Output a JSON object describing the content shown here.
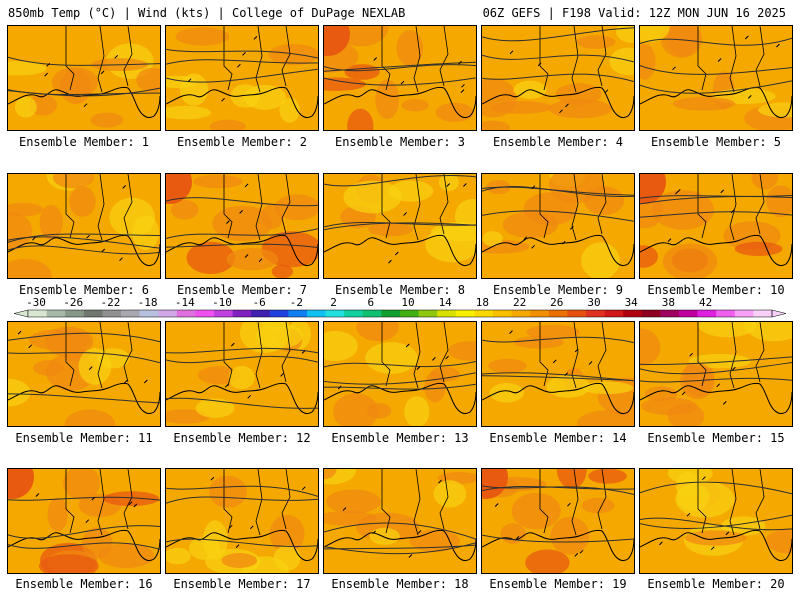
{
  "header": {
    "left": "850mb Temp (°C) | Wind (kts) | College of DuPage NEXLAB",
    "right": "06Z GEFS | F198 Valid: 12Z MON JUN 16 2025"
  },
  "colors": {
    "base_orange": "#f4a800",
    "warm_orange": "#f08a10",
    "hot_red": "#e85a10",
    "cool_yellow": "#f8d010",
    "contour": "#303030"
  },
  "panels": [
    {
      "label": "Ensemble Member: 1",
      "tint": "warm"
    },
    {
      "label": "Ensemble Member: 2",
      "tint": "cool"
    },
    {
      "label": "Ensemble Member: 3",
      "tint": "hot"
    },
    {
      "label": "Ensemble Member: 4",
      "tint": "warm"
    },
    {
      "label": "Ensemble Member: 5",
      "tint": "warm"
    },
    {
      "label": "Ensemble Member: 6",
      "tint": "warm"
    },
    {
      "label": "Ensemble Member: 7",
      "tint": "hot"
    },
    {
      "label": "Ensemble Member: 8",
      "tint": "cool"
    },
    {
      "label": "Ensemble Member: 9",
      "tint": "warm"
    },
    {
      "label": "Ensemble Member: 10",
      "tint": "hot"
    },
    {
      "label": "Ensemble Member: 11",
      "tint": "warm"
    },
    {
      "label": "Ensemble Member: 12",
      "tint": "cool"
    },
    {
      "label": "Ensemble Member: 13",
      "tint": "warm"
    },
    {
      "label": "Ensemble Member: 14",
      "tint": "warm"
    },
    {
      "label": "Ensemble Member: 15",
      "tint": "warm"
    },
    {
      "label": "Ensemble Member: 16",
      "tint": "hot"
    },
    {
      "label": "Ensemble Member: 17",
      "tint": "cool"
    },
    {
      "label": "Ensemble Member: 18",
      "tint": "warm"
    },
    {
      "label": "Ensemble Member: 19",
      "tint": "hot"
    },
    {
      "label": "Ensemble Member: 20",
      "tint": "cool"
    }
  ],
  "colorbar": {
    "ticks": [
      "-30",
      "-26",
      "-22",
      "-18",
      "-14",
      "-10",
      "-6",
      "-2",
      "2",
      "6",
      "10",
      "14",
      "18",
      "22",
      "26",
      "30",
      "34",
      "38",
      "42"
    ],
    "colors": [
      "#d8e8d0",
      "#a8b8a8",
      "#889888",
      "#707870",
      "#909090",
      "#a8a8b0",
      "#b8c0e0",
      "#d0a8e8",
      "#e070e0",
      "#f050f0",
      "#c040e0",
      "#8020c0",
      "#4020b0",
      "#2040e0",
      "#1080f0",
      "#10c0f0",
      "#20e0e0",
      "#10d0a0",
      "#10c070",
      "#10a030",
      "#40b010",
      "#90c810",
      "#d8e000",
      "#f8f000",
      "#f8d800",
      "#f8c000",
      "#f4a800",
      "#f09000",
      "#ec7000",
      "#e85010",
      "#e03020",
      "#d01818",
      "#b00010",
      "#900020",
      "#a00060",
      "#c000a0",
      "#e020e0",
      "#f060f0",
      "#f8a0f8",
      "#f8d0f8"
    ]
  }
}
